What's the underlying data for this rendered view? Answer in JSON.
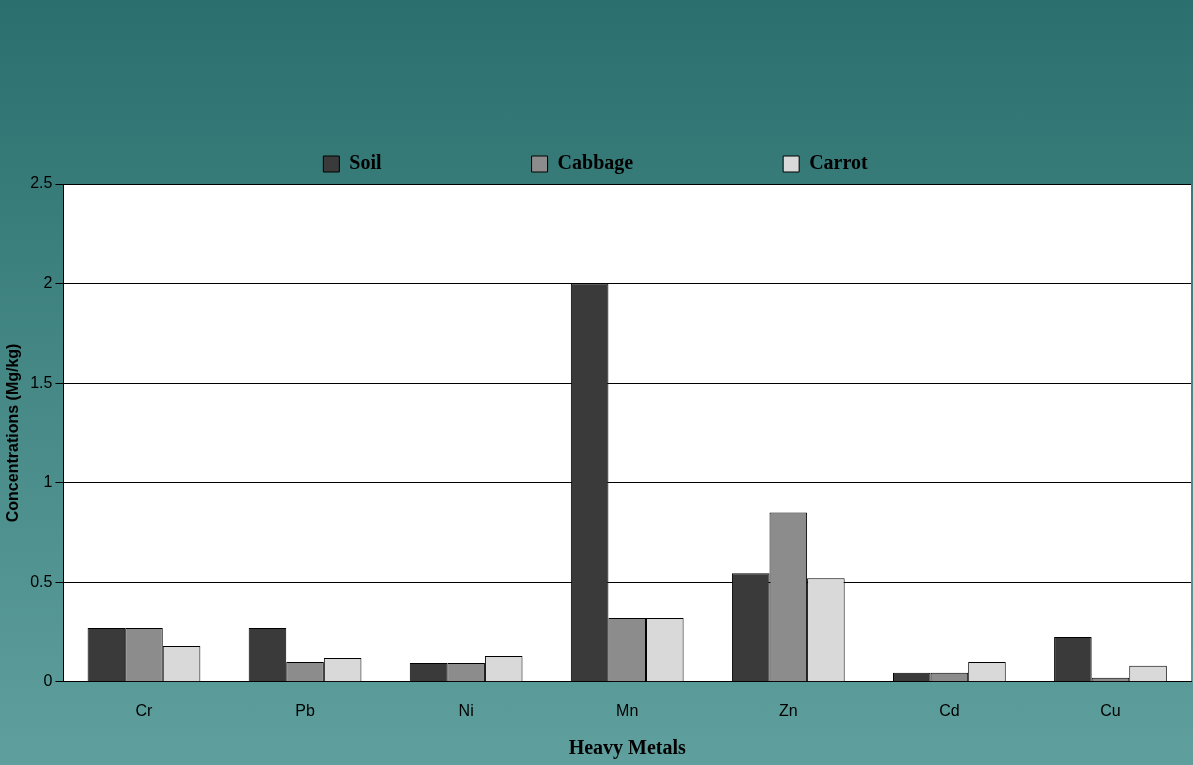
{
  "chart_data": {
    "type": "bar",
    "xlabel": "Heavy Metals",
    "ylabel": "Concentrations (Mg/kg)",
    "categories": [
      "Cr",
      "Pb",
      "Ni",
      "Mn",
      "Zn",
      "Cd",
      "Cu"
    ],
    "series": [
      {
        "name": "Soil",
        "color": "#3a3a3a",
        "values": [
          0.27,
          0.27,
          0.095,
          2.0,
          0.545,
          0.045,
          0.225
        ]
      },
      {
        "name": "Cabbage",
        "color": "#8c8c8c",
        "values": [
          0.27,
          0.1,
          0.095,
          0.32,
          0.85,
          0.045,
          0.02
        ]
      },
      {
        "name": "Carrot",
        "color": "#d9d9d9",
        "values": [
          0.18,
          0.12,
          0.13,
          0.32,
          0.52,
          0.1,
          0.08
        ]
      }
    ],
    "ylim": [
      0,
      2.5
    ],
    "yticks": [
      0,
      0.5,
      1,
      1.5,
      2,
      2.5
    ],
    "grid": "y",
    "legend": "top"
  }
}
